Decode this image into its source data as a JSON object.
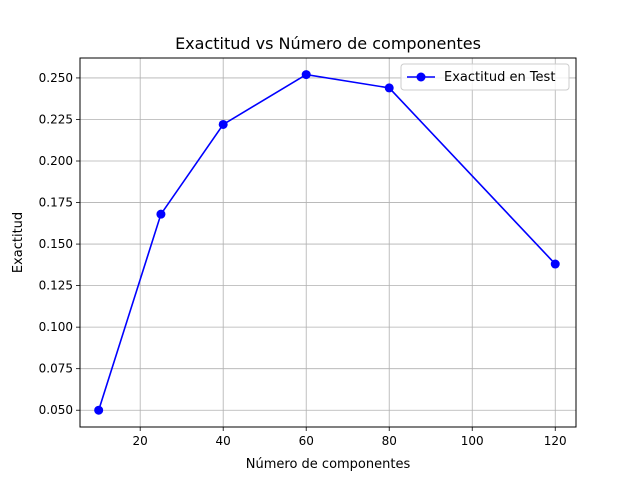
{
  "chart_data": {
    "type": "line",
    "title": "Exactitud vs Número de componentes",
    "xlabel": "Número de componentes",
    "ylabel": "Exactitud",
    "x": [
      10,
      25,
      40,
      60,
      80,
      120
    ],
    "series": [
      {
        "name": "Exactitud en Test",
        "values": [
          0.05,
          0.168,
          0.222,
          0.252,
          0.244,
          0.138
        ],
        "color": "#0000ff",
        "marker": "circle"
      }
    ],
    "xlim": [
      5.5,
      125
    ],
    "ylim": [
      0.0399,
      0.262
    ],
    "xticks": [
      20,
      40,
      60,
      80,
      100,
      120
    ],
    "xtick_labels": [
      "20",
      "40",
      "60",
      "80",
      "100",
      "120"
    ],
    "yticks": [
      0.05,
      0.075,
      0.1,
      0.125,
      0.15,
      0.175,
      0.2,
      0.225,
      0.25
    ],
    "ytick_labels": [
      "0.050",
      "0.075",
      "0.100",
      "0.125",
      "0.150",
      "0.175",
      "0.200",
      "0.225",
      "0.250"
    ],
    "grid": true,
    "legend_position": "top-right",
    "colors": {
      "grid": "#b0b0b0",
      "axes": "#000000"
    }
  }
}
